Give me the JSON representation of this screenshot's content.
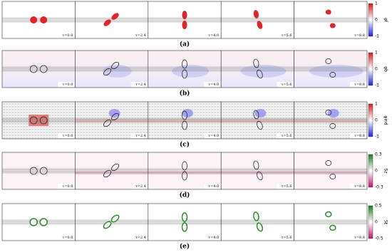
{
  "rows": [
    {
      "label": "(a)",
      "colorbar": {
        "title": "φf",
        "ticks": [
          1,
          0,
          -1
        ]
      },
      "times": [
        "τ=0.0",
        "τ=2.4",
        "τ=4.0",
        "τ=5.6",
        "τ=8.8"
      ]
    },
    {
      "label": "(b)",
      "colorbar": {
        "title": "φb",
        "ticks": [
          1,
          0,
          -1
        ]
      },
      "times": [
        "τ=0.0",
        "τ=2.4",
        "τ=4.0",
        "τ=5.6",
        "τ=8.8"
      ]
    },
    {
      "label": "(c)",
      "colorbar": {
        "title": "φind",
        "ticks": [
          1,
          0,
          -1
        ]
      },
      "times": [
        "τ=0.0",
        "τ=2.4",
        "τ=4.0",
        "τ=5.6",
        "τ=8.8"
      ]
    },
    {
      "label": "(d)",
      "colorbar": {
        "title": "Sz",
        "ticks": [
          0.3,
          0.0,
          -0.3
        ]
      },
      "times": [
        "τ=0.0",
        "τ=2.4",
        "τ=4.0",
        "τ=5.6",
        "τ=8.8"
      ]
    },
    {
      "label": "(e)",
      "colorbar": {
        "title": "St",
        "ticks": [
          0.5,
          0,
          -0.5
        ]
      },
      "times": [
        "τ=0.0",
        "τ=2.4",
        "τ=4.0",
        "τ=5.6",
        "τ=8.8"
      ]
    }
  ]
}
